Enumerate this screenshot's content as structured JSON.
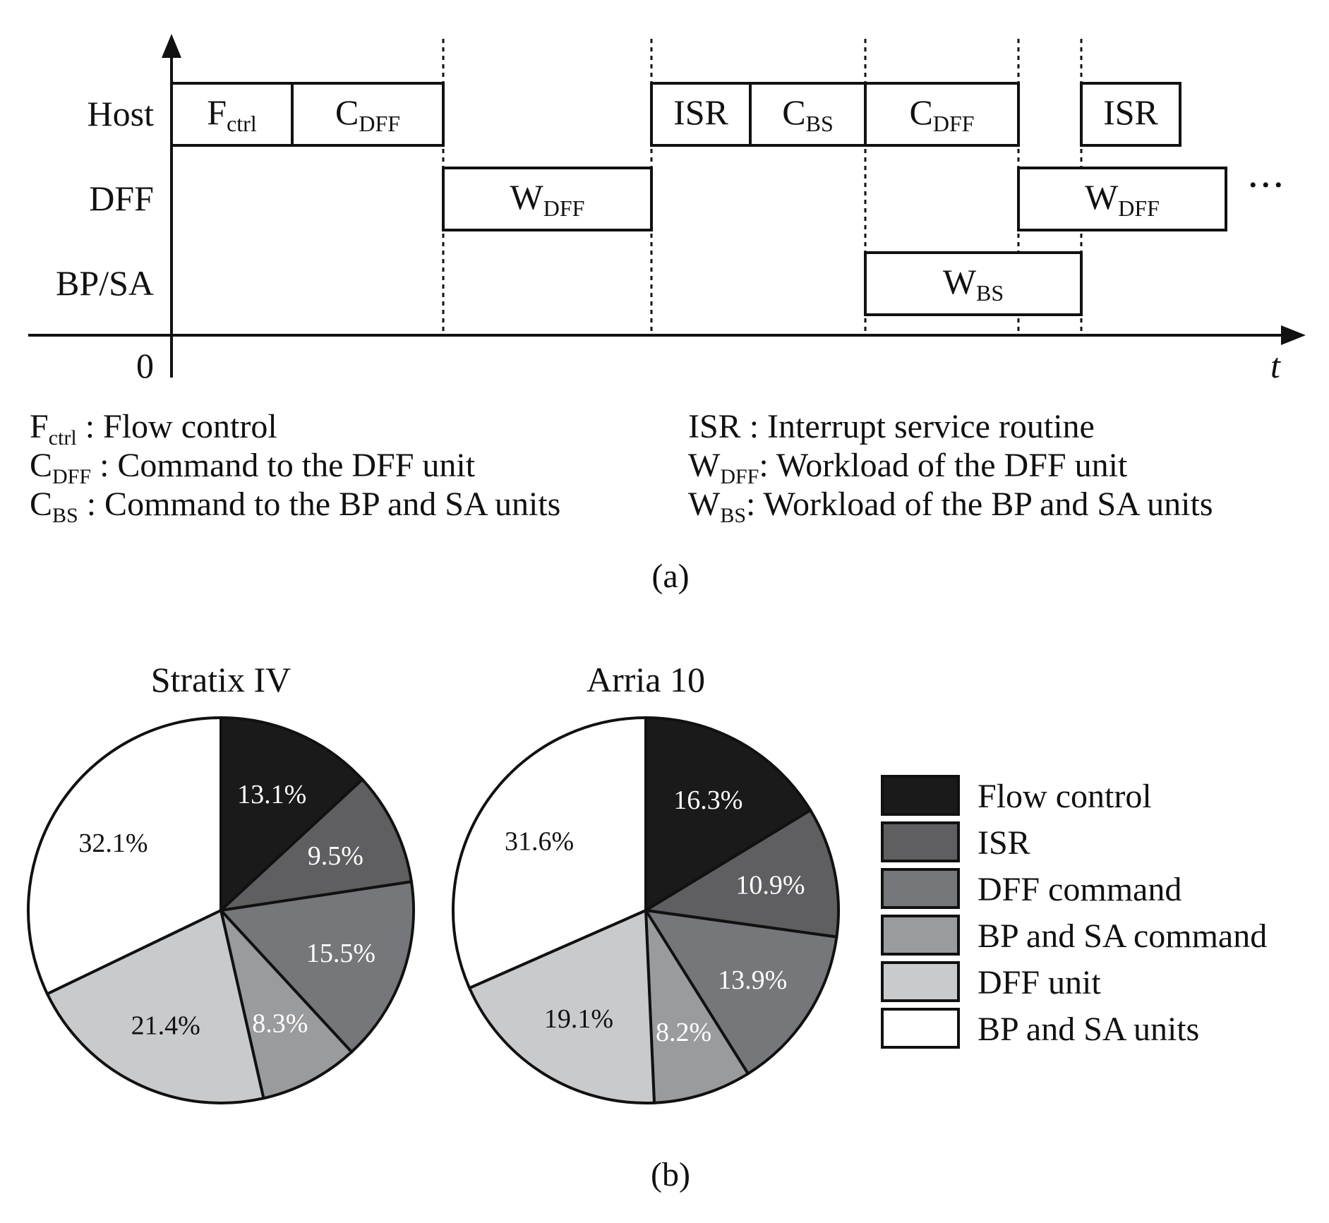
{
  "timing_diagram": {
    "lanes": [
      {
        "key": "host",
        "label": "Host"
      },
      {
        "key": "dff",
        "label": "DFF"
      },
      {
        "key": "bpsa",
        "label": "BP/SA"
      }
    ],
    "origin_label": "0",
    "time_label": "t",
    "ellipsis": "• • •",
    "blocks": [
      {
        "lane": "host",
        "main": "F",
        "sub": "ctrl"
      },
      {
        "lane": "host",
        "main": "C",
        "sub": "DFF"
      },
      {
        "lane": "host",
        "main": "ISR",
        "sub": ""
      },
      {
        "lane": "host",
        "main": "C",
        "sub": "BS"
      },
      {
        "lane": "host",
        "main": "C",
        "sub": "DFF"
      },
      {
        "lane": "host",
        "main": "ISR",
        "sub": ""
      },
      {
        "lane": "dff",
        "main": "W",
        "sub": "DFF"
      },
      {
        "lane": "dff",
        "main": "W",
        "sub": "DFF"
      },
      {
        "lane": "bpsa",
        "main": "W",
        "sub": "BS"
      }
    ],
    "legend": [
      {
        "main": "F",
        "sub": "ctrl",
        "desc": " : Flow control"
      },
      {
        "main": "C",
        "sub": "DFF",
        "desc": " : Command to the DFF unit"
      },
      {
        "main": "C",
        "sub": "BS",
        "desc": " : Command to the BP and SA units"
      },
      {
        "main": "ISR",
        "sub": "",
        "desc": " : Interrupt service routine"
      },
      {
        "main": "W",
        "sub": "DFF",
        "desc": ": Workload of the DFF unit"
      },
      {
        "main": "W",
        "sub": "BS",
        "desc": ": Workload of the BP and SA units"
      }
    ],
    "caption": "(a)"
  },
  "chart_data": [
    {
      "type": "pie",
      "title": "Stratix IV",
      "categories": [
        "Flow control",
        "ISR",
        "DFF command",
        "BP and SA command",
        "DFF unit",
        "BP and SA units"
      ],
      "values": [
        13.1,
        9.5,
        15.5,
        8.3,
        21.4,
        32.1
      ],
      "labels": [
        "13.1%",
        "9.5%",
        "15.5%",
        "8.3%",
        "21.4%",
        "32.1%"
      ]
    },
    {
      "type": "pie",
      "title": "Arria 10",
      "categories": [
        "Flow control",
        "ISR",
        "DFF command",
        "BP and SA command",
        "DFF unit",
        "BP and SA units"
      ],
      "values": [
        16.3,
        10.9,
        13.9,
        8.2,
        19.1,
        31.6
      ],
      "labels": [
        "16.3%",
        "10.9%",
        "13.9%",
        "8.2%",
        "19.1%",
        "31.6%"
      ]
    }
  ],
  "pie_legend": {
    "items": [
      "Flow control",
      "ISR",
      "DFF command",
      "BP and SA command",
      "DFF unit",
      "BP and SA units"
    ],
    "colors": [
      "#1a1a1a",
      "#5f5f61",
      "#76777a",
      "#9a9b9d",
      "#c9cacc",
      "#ffffff"
    ],
    "label_colors": [
      "#ffffff",
      "#ffffff",
      "#ffffff",
      "#ffffff",
      "#111111",
      "#111111"
    ]
  },
  "caption_b": "(b)"
}
